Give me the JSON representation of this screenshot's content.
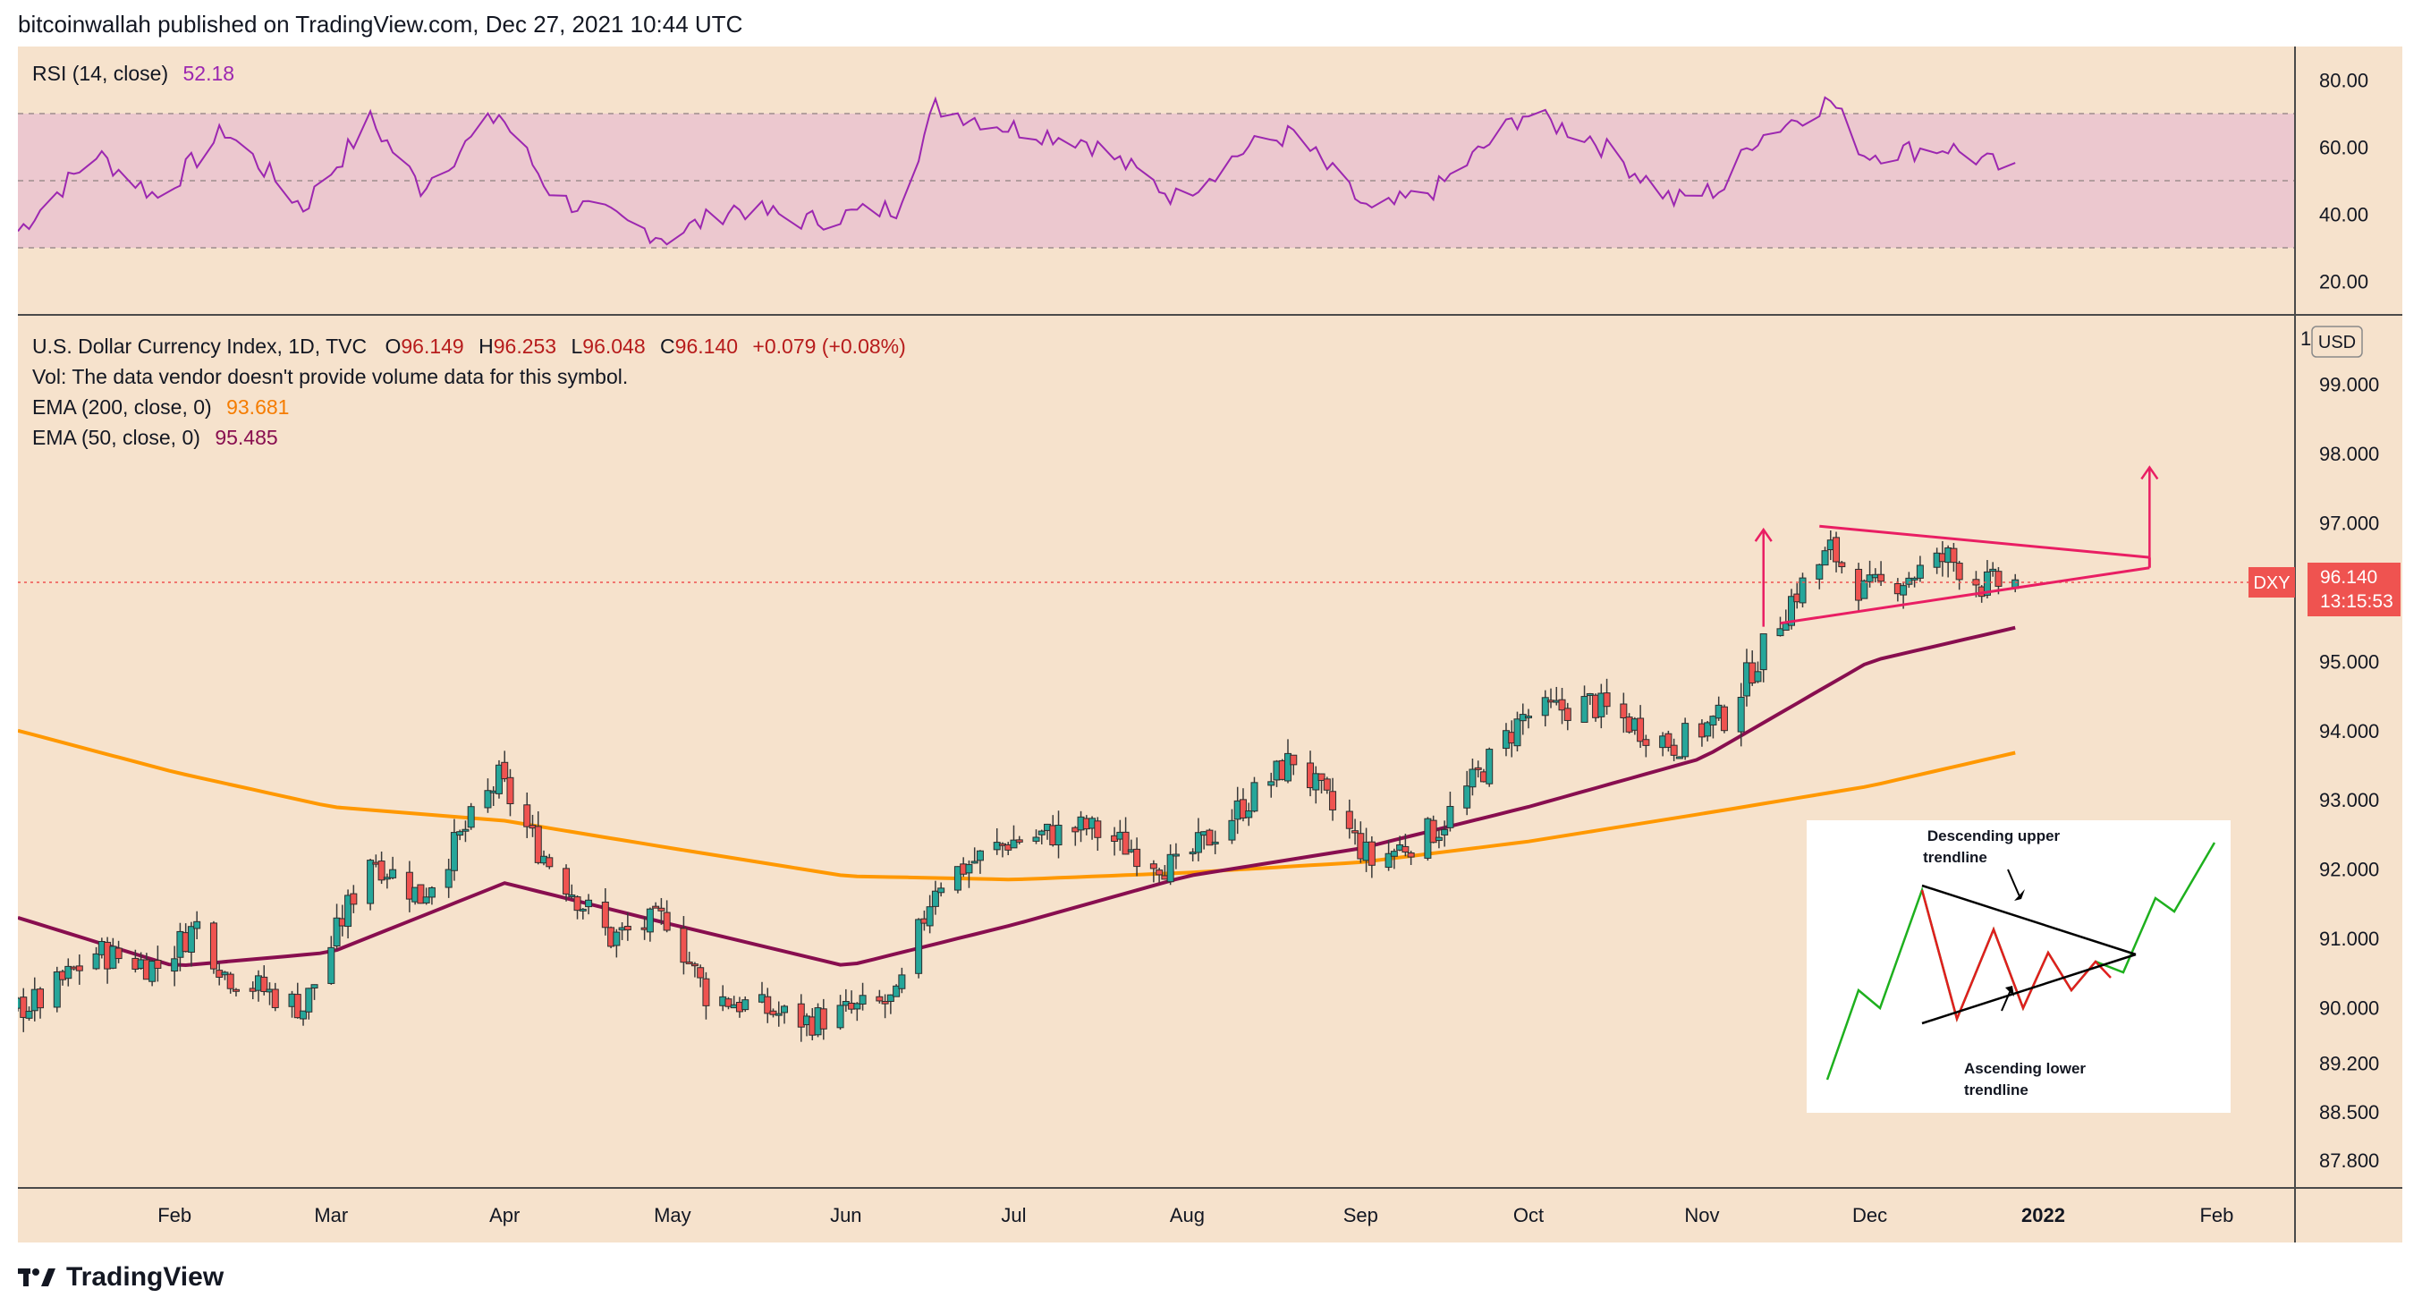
{
  "header": {
    "publisher_line": "bitcoinwallah published on TradingView.com, Dec 27, 2021 10:44 UTC"
  },
  "footer": {
    "brand": "TradingView"
  },
  "colors": {
    "background": "#f6e2cc",
    "up": "#26a69a",
    "down": "#ef5350",
    "ema200": "#ff9800",
    "ema50": "#880e4f",
    "rsi": "#9c27b0",
    "rsi_band": "#e8bfd0",
    "trendline": "#e91e63",
    "price_tag": "#ef5350"
  },
  "rsi_panel": {
    "label": "RSI (14, close)",
    "value": "52.18",
    "ticks": [
      "80.00",
      "60.00",
      "40.00",
      "20.00"
    ]
  },
  "main_panel": {
    "title": "U.S. Dollar Currency Index, 1D, TVC",
    "ohlc": [
      {
        "k": "O",
        "v": "96.149"
      },
      {
        "k": "H",
        "v": "96.253"
      },
      {
        "k": "L",
        "v": "96.048"
      },
      {
        "k": "C",
        "v": "96.140"
      }
    ],
    "change": "+0.079 (+0.08%)",
    "vol_note": "Vol: The data vendor doesn't provide volume data for this symbol.",
    "ema200_label": "EMA (200, close, 0)",
    "ema200_value": "93.681",
    "ema50_label": "EMA (50, close, 0)",
    "ema50_value": "95.485",
    "currency": "USD",
    "symbol_tag": "DXY",
    "last_price": "96.140",
    "countdown": "13:15:53",
    "price_ticks": [
      "99.000",
      "98.000",
      "97.000",
      "95.000",
      "94.000",
      "93.000",
      "92.000",
      "91.000",
      "90.000",
      "89.200",
      "88.500",
      "87.800"
    ],
    "top_tick_partial": "10"
  },
  "time_axis": [
    "Feb",
    "Mar",
    "Apr",
    "May",
    "Jun",
    "Jul",
    "Aug",
    "Sep",
    "Oct",
    "Nov",
    "Dec",
    "2022",
    "Feb"
  ],
  "inset": {
    "upper_label_1": "Descending upper",
    "upper_label_2": "trendline",
    "lower_label_1": "Ascending lower",
    "lower_label_2": "trendline"
  },
  "chart_data": {
    "type": "candlestick",
    "title": "U.S. Dollar Currency Index, 1D, TVC",
    "x_range": [
      "2021-01-04",
      "2022-02-15"
    ],
    "y_range": [
      87.4,
      100.0
    ],
    "close_anchors": [
      {
        "d": "2021-01-04",
        "v": 90.0
      },
      {
        "d": "2021-01-08",
        "v": 90.1
      },
      {
        "d": "2021-01-18",
        "v": 90.8
      },
      {
        "d": "2021-01-29",
        "v": 90.6
      },
      {
        "d": "2021-02-05",
        "v": 91.2
      },
      {
        "d": "2021-02-10",
        "v": 90.5
      },
      {
        "d": "2021-02-24",
        "v": 90.0
      },
      {
        "d": "2021-03-01",
        "v": 90.9
      },
      {
        "d": "2021-03-08",
        "v": 92.2
      },
      {
        "d": "2021-03-17",
        "v": 91.6
      },
      {
        "d": "2021-03-31",
        "v": 93.3
      },
      {
        "d": "2021-04-07",
        "v": 92.3
      },
      {
        "d": "2021-04-20",
        "v": 91.0
      },
      {
        "d": "2021-04-30",
        "v": 91.3
      },
      {
        "d": "2021-05-07",
        "v": 90.2
      },
      {
        "d": "2021-05-25",
        "v": 89.8
      },
      {
        "d": "2021-06-10",
        "v": 90.1
      },
      {
        "d": "2021-06-17",
        "v": 91.8
      },
      {
        "d": "2021-06-30",
        "v": 92.4
      },
      {
        "d": "2021-07-14",
        "v": 92.6
      },
      {
        "d": "2021-07-30",
        "v": 92.0
      },
      {
        "d": "2021-08-12",
        "v": 93.0
      },
      {
        "d": "2021-08-20",
        "v": 93.6
      },
      {
        "d": "2021-09-03",
        "v": 92.1
      },
      {
        "d": "2021-09-15",
        "v": 92.6
      },
      {
        "d": "2021-09-30",
        "v": 94.2
      },
      {
        "d": "2021-10-12",
        "v": 94.4
      },
      {
        "d": "2021-10-27",
        "v": 93.8
      },
      {
        "d": "2021-11-05",
        "v": 94.2
      },
      {
        "d": "2021-11-10",
        "v": 94.9
      },
      {
        "d": "2021-11-17",
        "v": 95.9
      },
      {
        "d": "2021-11-24",
        "v": 96.6
      },
      {
        "d": "2021-11-30",
        "v": 96.0
      },
      {
        "d": "2021-12-07",
        "v": 96.2
      },
      {
        "d": "2021-12-15",
        "v": 96.5
      },
      {
        "d": "2021-12-21",
        "v": 96.1
      },
      {
        "d": "2021-12-27",
        "v": 96.14
      }
    ],
    "ema200_anchors": [
      {
        "d": "2021-01-04",
        "v": 94.0
      },
      {
        "d": "2021-02-01",
        "v": 93.4
      },
      {
        "d": "2021-03-01",
        "v": 92.9
      },
      {
        "d": "2021-04-01",
        "v": 92.7
      },
      {
        "d": "2021-05-01",
        "v": 92.3
      },
      {
        "d": "2021-06-01",
        "v": 91.9
      },
      {
        "d": "2021-07-01",
        "v": 91.85
      },
      {
        "d": "2021-08-01",
        "v": 91.95
      },
      {
        "d": "2021-09-01",
        "v": 92.1
      },
      {
        "d": "2021-10-01",
        "v": 92.4
      },
      {
        "d": "2021-11-01",
        "v": 92.8
      },
      {
        "d": "2021-12-01",
        "v": 93.2
      },
      {
        "d": "2021-12-27",
        "v": 93.681
      }
    ],
    "ema50_anchors": [
      {
        "d": "2021-01-04",
        "v": 91.3
      },
      {
        "d": "2021-02-01",
        "v": 90.6
      },
      {
        "d": "2021-03-01",
        "v": 90.8
      },
      {
        "d": "2021-04-01",
        "v": 91.8
      },
      {
        "d": "2021-05-01",
        "v": 91.2
      },
      {
        "d": "2021-06-01",
        "v": 90.6
      },
      {
        "d": "2021-07-01",
        "v": 91.2
      },
      {
        "d": "2021-08-01",
        "v": 91.9
      },
      {
        "d": "2021-09-01",
        "v": 92.3
      },
      {
        "d": "2021-10-01",
        "v": 92.9
      },
      {
        "d": "2021-11-01",
        "v": 93.6
      },
      {
        "d": "2021-12-01",
        "v": 95.0
      },
      {
        "d": "2021-12-27",
        "v": 95.485
      }
    ],
    "rsi": {
      "range": [
        10,
        90
      ],
      "band": [
        30,
        70
      ],
      "midline": 50,
      "anchors": [
        {
          "d": "2021-01-04",
          "v": 35
        },
        {
          "d": "2021-01-18",
          "v": 58
        },
        {
          "d": "2021-01-29",
          "v": 45
        },
        {
          "d": "2021-02-10",
          "v": 65
        },
        {
          "d": "2021-02-24",
          "v": 42
        },
        {
          "d": "2021-03-08",
          "v": 68
        },
        {
          "d": "2021-03-17",
          "v": 48
        },
        {
          "d": "2021-03-31",
          "v": 70
        },
        {
          "d": "2021-04-10",
          "v": 45
        },
        {
          "d": "2021-04-30",
          "v": 33
        },
        {
          "d": "2021-05-12",
          "v": 42
        },
        {
          "d": "2021-05-25",
          "v": 38
        },
        {
          "d": "2021-06-10",
          "v": 42
        },
        {
          "d": "2021-06-17",
          "v": 72
        },
        {
          "d": "2021-06-30",
          "v": 66
        },
        {
          "d": "2021-07-14",
          "v": 62
        },
        {
          "d": "2021-07-30",
          "v": 45
        },
        {
          "d": "2021-08-12",
          "v": 60
        },
        {
          "d": "2021-08-20",
          "v": 64
        },
        {
          "d": "2021-09-03",
          "v": 40
        },
        {
          "d": "2021-09-15",
          "v": 48
        },
        {
          "d": "2021-09-30",
          "v": 70
        },
        {
          "d": "2021-10-12",
          "v": 63
        },
        {
          "d": "2021-10-27",
          "v": 44
        },
        {
          "d": "2021-11-05",
          "v": 48
        },
        {
          "d": "2021-11-10",
          "v": 62
        },
        {
          "d": "2021-11-24",
          "v": 74
        },
        {
          "d": "2021-11-30",
          "v": 58
        },
        {
          "d": "2021-12-15",
          "v": 60
        },
        {
          "d": "2021-12-27",
          "v": 52.18
        }
      ]
    },
    "overlays": {
      "upper_trendline": [
        {
          "d": "2021-11-22",
          "v": 96.95
        },
        {
          "d": "2022-01-20",
          "v": 96.5
        }
      ],
      "lower_trendline": [
        {
          "d": "2021-11-15",
          "v": 95.55
        },
        {
          "d": "2022-01-20",
          "v": 96.35
        }
      ],
      "arrows": [
        {
          "d": "2021-11-12",
          "from": 95.5,
          "to": 96.9
        },
        {
          "d": "2022-01-20",
          "from": 96.5,
          "to": 97.8
        }
      ],
      "last_price_line": 96.14
    }
  }
}
